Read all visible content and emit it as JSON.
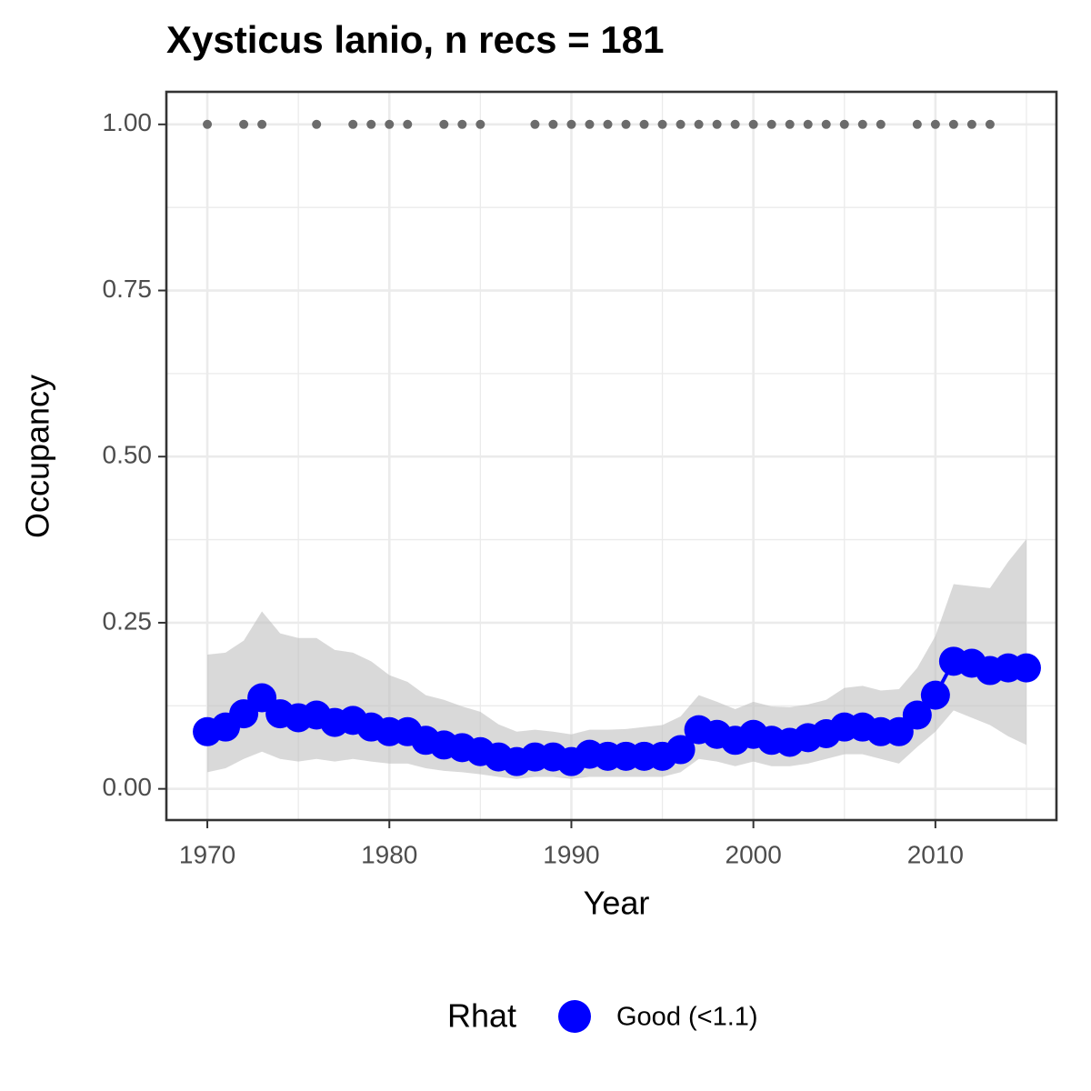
{
  "chart_data": {
    "type": "line",
    "title": "Xysticus lanio, n recs = 181",
    "x_label": "Year",
    "y_label": "Occupancy",
    "legend_title": "Rhat",
    "x": [
      1970,
      1971,
      1972,
      1973,
      1974,
      1975,
      1976,
      1977,
      1978,
      1979,
      1980,
      1981,
      1982,
      1983,
      1984,
      1985,
      1986,
      1987,
      1988,
      1989,
      1990,
      1991,
      1992,
      1993,
      1994,
      1995,
      1996,
      1997,
      1998,
      1999,
      2000,
      2001,
      2002,
      2003,
      2004,
      2005,
      2006,
      2007,
      2008,
      2009,
      2010,
      2011,
      2012,
      2013,
      2014,
      2015
    ],
    "series": [
      {
        "name": "Good (<1.1)",
        "color": "#0000ff",
        "values": [
          0.086,
          0.093,
          0.113,
          0.137,
          0.113,
          0.107,
          0.111,
          0.1,
          0.103,
          0.093,
          0.086,
          0.086,
          0.073,
          0.066,
          0.062,
          0.056,
          0.048,
          0.041,
          0.048,
          0.048,
          0.041,
          0.052,
          0.049,
          0.049,
          0.049,
          0.049,
          0.059,
          0.089,
          0.082,
          0.073,
          0.082,
          0.073,
          0.07,
          0.077,
          0.083,
          0.093,
          0.093,
          0.086,
          0.086,
          0.111,
          0.141,
          0.192,
          0.189,
          0.178,
          0.182,
          0.182
        ]
      }
    ],
    "ribbon": {
      "color": "#bfbfbf",
      "upper": [
        0.202,
        0.205,
        0.223,
        0.267,
        0.234,
        0.227,
        0.227,
        0.209,
        0.205,
        0.192,
        0.171,
        0.161,
        0.141,
        0.134,
        0.124,
        0.116,
        0.097,
        0.086,
        0.089,
        0.086,
        0.082,
        0.089,
        0.089,
        0.09,
        0.093,
        0.096,
        0.109,
        0.141,
        0.131,
        0.12,
        0.131,
        0.124,
        0.123,
        0.127,
        0.134,
        0.152,
        0.155,
        0.148,
        0.15,
        0.182,
        0.23,
        0.308,
        0.305,
        0.302,
        0.342,
        0.376
      ],
      "lower": [
        0.025,
        0.031,
        0.045,
        0.056,
        0.045,
        0.041,
        0.045,
        0.041,
        0.045,
        0.041,
        0.038,
        0.038,
        0.031,
        0.027,
        0.025,
        0.022,
        0.018,
        0.015,
        0.018,
        0.018,
        0.015,
        0.018,
        0.018,
        0.018,
        0.018,
        0.018,
        0.025,
        0.045,
        0.041,
        0.034,
        0.041,
        0.034,
        0.034,
        0.038,
        0.045,
        0.052,
        0.052,
        0.045,
        0.038,
        0.063,
        0.086,
        0.118,
        0.107,
        0.096,
        0.079,
        0.066
      ]
    },
    "records": {
      "color": "#6b6b6b",
      "x": [
        1970,
        1972,
        1973,
        1976,
        1978,
        1979,
        1980,
        1981,
        1983,
        1984,
        1985,
        1988,
        1989,
        1990,
        1991,
        1992,
        1993,
        1994,
        1995,
        1996,
        1997,
        1998,
        1999,
        2000,
        2001,
        2002,
        2003,
        2004,
        2005,
        2006,
        2007,
        2009,
        2010,
        2011,
        2012,
        2013
      ],
      "values": [
        1,
        1,
        1,
        1,
        1,
        1,
        1,
        1,
        1,
        1,
        1,
        1,
        1,
        1,
        1,
        1,
        1,
        1,
        1,
        1,
        1,
        1,
        1,
        1,
        1,
        1,
        1,
        1,
        1,
        1,
        1,
        1,
        1,
        1,
        1,
        1
      ]
    },
    "xlim": [
      1967.75,
      2016.65
    ],
    "ylim": [
      -0.047,
      1.049
    ],
    "xticks": [
      1970,
      1980,
      1990,
      2000,
      2010
    ],
    "x_minor_ticks": [
      1975,
      1985,
      1995,
      2005,
      2015
    ],
    "yticks": [
      {
        "value": 0,
        "label": "0.00"
      },
      {
        "value": 0.25,
        "label": "0.25"
      },
      {
        "value": 0.5,
        "label": "0.50"
      },
      {
        "value": 0.75,
        "label": "0.75"
      },
      {
        "value": 1,
        "label": "1.00"
      }
    ],
    "y_minor_ticks": [
      0.125,
      0.375,
      0.625,
      0.875
    ],
    "grid": true,
    "legend_position": "bottom"
  }
}
